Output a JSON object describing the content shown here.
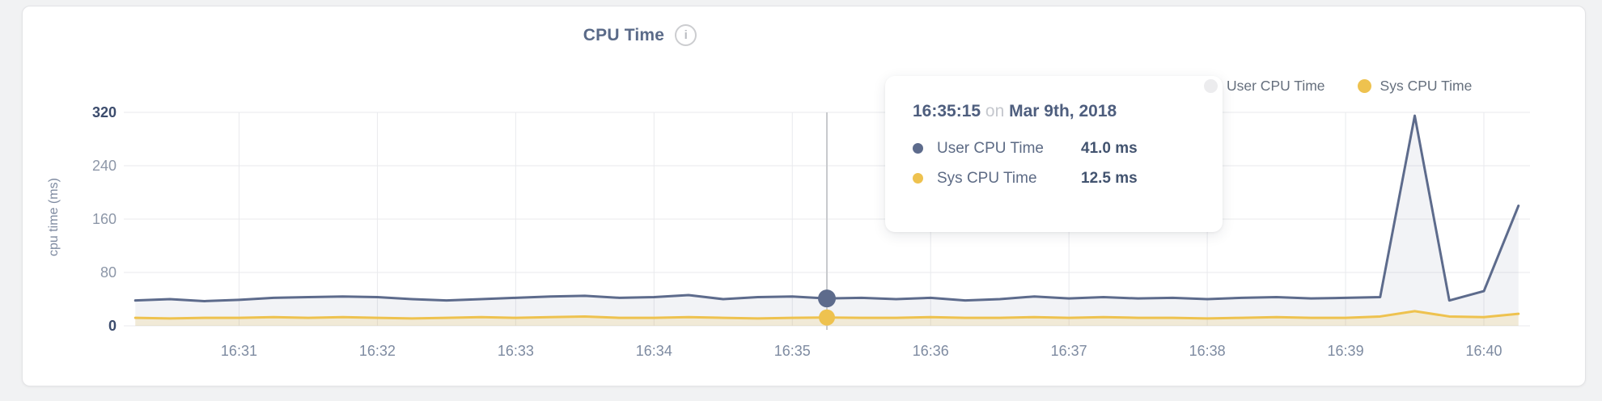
{
  "header": {
    "title": "CPU Time",
    "info_glyph": "i"
  },
  "legend": {
    "items": [
      {
        "label": "User CPU Time",
        "dot_color": "#ececee",
        "series_color": "#5d6b8c"
      },
      {
        "label": "Sys CPU Time",
        "dot_color": "#eec24f",
        "series_color": "#eec24f"
      }
    ]
  },
  "tooltip": {
    "time": "16:35:15",
    "conjunction": "on",
    "date": "Mar 9th, 2018",
    "rows": [
      {
        "label": "User CPU Time",
        "value": "41.0 ms",
        "color": "#5d6b8c"
      },
      {
        "label": "Sys CPU Time",
        "value": "12.5 ms",
        "color": "#eec24f"
      }
    ]
  },
  "chart_data": {
    "type": "area",
    "title": "CPU Time",
    "xlabel": "",
    "ylabel": "cpu time (ms)",
    "ylim": [
      0,
      320
    ],
    "yticks": [
      0,
      80,
      160,
      240,
      320
    ],
    "xticks": [
      "16:31",
      "16:32",
      "16:33",
      "16:34",
      "16:35",
      "16:36",
      "16:37",
      "16:38",
      "16:39",
      "16:40"
    ],
    "grid": true,
    "legend_position": "top-right",
    "x": [
      "16:30:15",
      "16:30:30",
      "16:30:45",
      "16:31:00",
      "16:31:15",
      "16:31:30",
      "16:31:45",
      "16:32:00",
      "16:32:15",
      "16:32:30",
      "16:32:45",
      "16:33:00",
      "16:33:15",
      "16:33:30",
      "16:33:45",
      "16:34:00",
      "16:34:15",
      "16:34:30",
      "16:34:45",
      "16:35:00",
      "16:35:15",
      "16:35:30",
      "16:35:45",
      "16:36:00",
      "16:36:15",
      "16:36:30",
      "16:36:45",
      "16:37:00",
      "16:37:15",
      "16:37:30",
      "16:37:45",
      "16:38:00",
      "16:38:15",
      "16:38:30",
      "16:38:45",
      "16:39:00",
      "16:39:15",
      "16:39:30",
      "16:39:45",
      "16:40:00",
      "16:40:15"
    ],
    "series": [
      {
        "name": "User CPU Time",
        "color": "#5d6b8c",
        "fill": "rgba(93,107,140,0.08)",
        "values": [
          38,
          40,
          37,
          39,
          42,
          43,
          44,
          43,
          40,
          38,
          40,
          42,
          44,
          45,
          42,
          43,
          46,
          40,
          43,
          44,
          41,
          42,
          40,
          42,
          38,
          40,
          44,
          41,
          43,
          41,
          42,
          40,
          42,
          43,
          41,
          42,
          43,
          315,
          38,
          52,
          180
        ]
      },
      {
        "name": "Sys CPU Time",
        "color": "#eec24f",
        "fill": "rgba(238,194,79,0.18)",
        "values": [
          12,
          11,
          12,
          12,
          13,
          12,
          13,
          12,
          11,
          12,
          13,
          12,
          13,
          14,
          12,
          12,
          13,
          12,
          11,
          12,
          12.5,
          12,
          12,
          13,
          12,
          12,
          13,
          12,
          13,
          12,
          12,
          11,
          12,
          13,
          12,
          12,
          14,
          22,
          14,
          13,
          18
        ]
      }
    ],
    "highlight": {
      "index": 20,
      "time": "16:35:15",
      "user_value_ms": 41.0,
      "sys_value_ms": 12.5
    }
  }
}
